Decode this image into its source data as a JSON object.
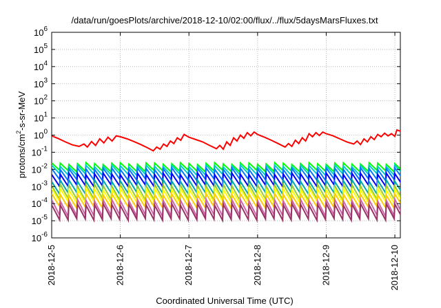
{
  "chart_data": {
    "type": "line",
    "title": "/data/run/goesPlots/archive/2018-12-10/02:00/flux/../flux/5daysMarsFluxes.txt",
    "xlabel": "Coordinated Universal Time (UTC)",
    "ylabel_parts": [
      "protons/cm",
      "2",
      "-s-sr-MeV"
    ],
    "yscale": "log",
    "ylim_exp": [
      -6,
      6
    ],
    "ytick_exps": [
      "-6",
      "-5",
      "-4",
      "-3",
      "-2",
      "-1",
      "0",
      "1",
      "2",
      "3",
      "4",
      "5",
      "6"
    ],
    "ytick_base": "10",
    "x_ticks": [
      "2018-12-5",
      "2018-12-6",
      "2018-12-7",
      "2018-12-8",
      "2018-12-9",
      "2018-12-10"
    ],
    "xlim_days": [
      0,
      5.08
    ],
    "grid": true,
    "legend": "none",
    "series": [
      {
        "color": "#ff0000",
        "pattern": "ramp",
        "points": [
          [
            0.0,
            0.9
          ],
          [
            0.1,
            0.62
          ],
          [
            0.2,
            0.4
          ],
          [
            0.3,
            0.27
          ],
          [
            0.4,
            0.22
          ],
          [
            0.47,
            0.3
          ],
          [
            0.52,
            0.2
          ],
          [
            0.58,
            0.42
          ],
          [
            0.64,
            0.25
          ],
          [
            0.7,
            0.6
          ],
          [
            0.76,
            0.35
          ],
          [
            0.82,
            0.75
          ],
          [
            0.88,
            0.45
          ],
          [
            0.94,
            0.9
          ],
          [
            1.0,
            0.8
          ],
          [
            1.1,
            0.6
          ],
          [
            1.2,
            0.42
          ],
          [
            1.3,
            0.28
          ],
          [
            1.4,
            0.18
          ],
          [
            1.48,
            0.12
          ],
          [
            1.53,
            0.2
          ],
          [
            1.58,
            0.15
          ],
          [
            1.63,
            0.3
          ],
          [
            1.68,
            0.22
          ],
          [
            1.73,
            0.45
          ],
          [
            1.78,
            0.32
          ],
          [
            1.83,
            0.7
          ],
          [
            1.88,
            0.5
          ],
          [
            1.93,
            1.1
          ],
          [
            2.0,
            0.75
          ],
          [
            2.1,
            0.55
          ],
          [
            2.2,
            0.4
          ],
          [
            2.3,
            0.25
          ],
          [
            2.4,
            0.16
          ],
          [
            2.45,
            0.25
          ],
          [
            2.5,
            0.15
          ],
          [
            2.55,
            0.4
          ],
          [
            2.6,
            0.25
          ],
          [
            2.65,
            0.7
          ],
          [
            2.7,
            0.45
          ],
          [
            2.75,
            1.0
          ],
          [
            2.8,
            0.65
          ],
          [
            2.85,
            1.4
          ],
          [
            2.9,
            0.9
          ],
          [
            2.95,
            1.5
          ],
          [
            3.0,
            1.1
          ],
          [
            3.1,
            0.75
          ],
          [
            3.2,
            0.5
          ],
          [
            3.3,
            0.32
          ],
          [
            3.4,
            0.2
          ],
          [
            3.45,
            0.32
          ],
          [
            3.5,
            0.22
          ],
          [
            3.55,
            0.5
          ],
          [
            3.6,
            0.32
          ],
          [
            3.65,
            0.7
          ],
          [
            3.7,
            0.45
          ],
          [
            3.75,
            1.2
          ],
          [
            3.8,
            0.8
          ],
          [
            3.85,
            1.4
          ],
          [
            3.9,
            0.95
          ],
          [
            3.95,
            1.5
          ],
          [
            4.0,
            1.2
          ],
          [
            4.1,
            0.9
          ],
          [
            4.2,
            0.6
          ],
          [
            4.3,
            0.4
          ],
          [
            4.4,
            0.3
          ],
          [
            4.45,
            0.45
          ],
          [
            4.5,
            0.28
          ],
          [
            4.55,
            0.6
          ],
          [
            4.6,
            0.4
          ],
          [
            4.65,
            0.8
          ],
          [
            4.7,
            0.55
          ],
          [
            4.75,
            1.1
          ],
          [
            4.8,
            0.8
          ],
          [
            4.85,
            1.3
          ],
          [
            4.9,
            0.9
          ],
          [
            4.95,
            1.2
          ],
          [
            5.0,
            0.85
          ],
          [
            5.03,
            2.0
          ],
          [
            5.08,
            1.7
          ]
        ]
      },
      {
        "color": "#00ff00",
        "pattern": "sawtooth",
        "peak": 0.022,
        "trough": 0.008
      },
      {
        "color": "#00cccc",
        "pattern": "sawtooth",
        "peak": 0.016,
        "trough": 0.005
      },
      {
        "color": "#0077ff",
        "pattern": "sawtooth",
        "peak": 0.011,
        "trough": 0.0025
      },
      {
        "color": "#0000ff",
        "pattern": "sawtooth",
        "peak": 0.0055,
        "trough": 0.0011
      },
      {
        "color": "#00aaaa",
        "pattern": "sawtooth",
        "peak": 0.0022,
        "trough": 0.0004
      },
      {
        "color": "#99cc33",
        "pattern": "sawtooth",
        "peak": 0.0012,
        "trough": 0.00018
      },
      {
        "color": "#ffff00",
        "pattern": "sawtooth",
        "peak": 0.0007,
        "trough": 0.00012
      },
      {
        "color": "#ffcc00",
        "pattern": "sawtooth",
        "peak": 0.00035,
        "trough": 6e-05
      },
      {
        "color": "#cc66aa",
        "pattern": "sawtooth",
        "peak": 0.00016,
        "trough": 2e-05
      },
      {
        "color": "#993366",
        "pattern": "sawtooth",
        "peak": 9e-05,
        "trough": 1.2e-05
      }
    ],
    "sawtooth_period_days": 0.125
  }
}
